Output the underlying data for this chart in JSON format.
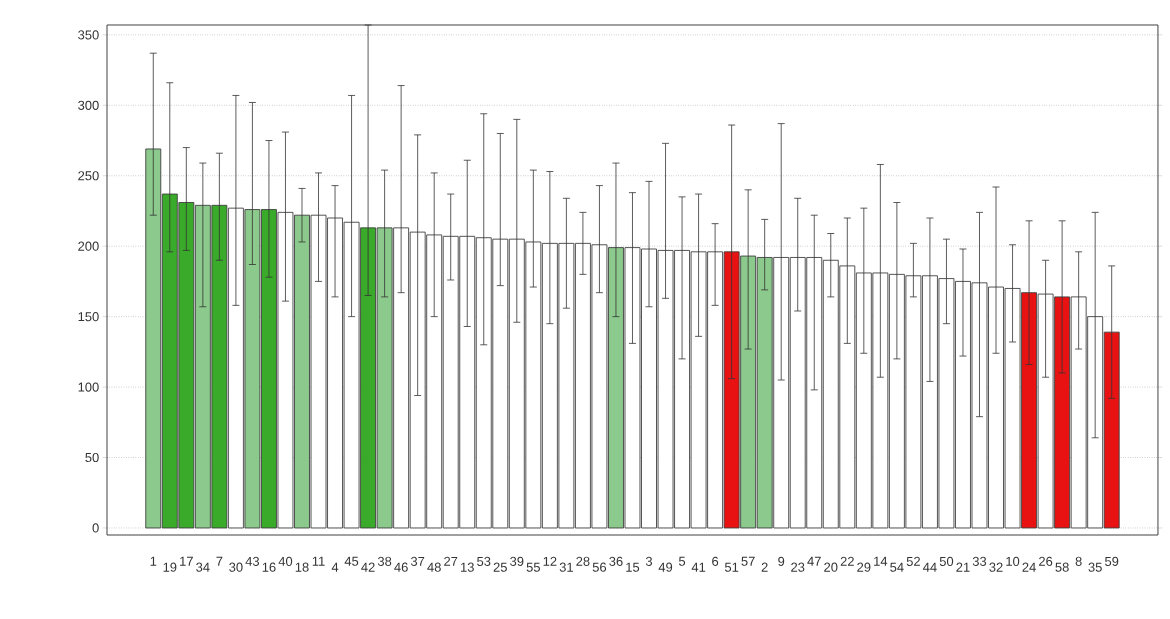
{
  "chart_data": {
    "type": "bar",
    "categories": [
      "1",
      "19",
      "17",
      "34",
      "7",
      "30",
      "43",
      "16",
      "40",
      "18",
      "11",
      "4",
      "45",
      "42",
      "38",
      "46",
      "37",
      "48",
      "27",
      "13",
      "53",
      "25",
      "39",
      "55",
      "12",
      "31",
      "28",
      "56",
      "36",
      "15",
      "3",
      "49",
      "5",
      "41",
      "6",
      "51",
      "57",
      "2",
      "9",
      "23",
      "47",
      "20",
      "22",
      "29",
      "14",
      "54",
      "52",
      "44",
      "50",
      "21",
      "33",
      "32",
      "10",
      "24",
      "26",
      "58",
      "8",
      "35",
      "59"
    ],
    "values": [
      269,
      237,
      231,
      229,
      229,
      227,
      226,
      226,
      224,
      222,
      222,
      220,
      217,
      213,
      213,
      213,
      210,
      208,
      207,
      207,
      206,
      205,
      205,
      203,
      202,
      202,
      202,
      201,
      199,
      199,
      198,
      197,
      197,
      196,
      196,
      196,
      193,
      192,
      192,
      192,
      192,
      190,
      186,
      181,
      181,
      180,
      179,
      179,
      177,
      175,
      174,
      171,
      170,
      167,
      166,
      164,
      164,
      150,
      139
    ],
    "errors": [
      [
        222,
        337
      ],
      [
        196,
        316
      ],
      [
        197,
        270
      ],
      [
        157,
        259
      ],
      [
        190,
        266
      ],
      [
        158,
        307
      ],
      [
        187,
        302
      ],
      [
        178,
        275
      ],
      [
        161,
        281
      ],
      [
        203,
        241
      ],
      [
        175,
        252
      ],
      [
        164,
        243
      ],
      [
        150,
        307
      ],
      [
        165,
        357
      ],
      [
        164,
        254
      ],
      [
        167,
        314
      ],
      [
        94,
        279
      ],
      [
        150,
        252
      ],
      [
        176,
        237
      ],
      [
        143,
        261
      ],
      [
        130,
        294
      ],
      [
        172,
        280
      ],
      [
        146,
        290
      ],
      [
        171,
        254
      ],
      [
        145,
        253
      ],
      [
        156,
        234
      ],
      [
        180,
        224
      ],
      [
        167,
        243
      ],
      [
        150,
        259
      ],
      [
        131,
        238
      ],
      [
        157,
        246
      ],
      [
        163,
        273
      ],
      [
        120,
        235
      ],
      [
        136,
        237
      ],
      [
        158,
        216
      ],
      [
        106,
        286
      ],
      [
        127,
        240
      ],
      [
        169,
        219
      ],
      [
        105,
        287
      ],
      [
        154,
        234
      ],
      [
        98,
        222
      ],
      [
        164,
        209
      ],
      [
        131,
        220
      ],
      [
        124,
        227
      ],
      [
        107,
        258
      ],
      [
        120,
        231
      ],
      [
        164,
        202
      ],
      [
        104,
        220
      ],
      [
        145,
        205
      ],
      [
        122,
        198
      ],
      [
        79,
        224
      ],
      [
        124,
        242
      ],
      [
        132,
        201
      ],
      [
        116,
        218
      ],
      [
        107,
        190
      ],
      [
        110,
        218
      ],
      [
        127,
        196
      ],
      [
        64,
        224
      ],
      [
        92,
        186
      ]
    ],
    "colors": [
      "#8cc98c",
      "#3aaa2a",
      "#3aaa2a",
      "#8cc98c",
      "#3aaa2a",
      "#ffffff",
      "#8cc98c",
      "#3aaa2a",
      "#ffffff",
      "#8cc98c",
      "#ffffff",
      "#ffffff",
      "#ffffff",
      "#3aaa2a",
      "#8cc98c",
      "#ffffff",
      "#ffffff",
      "#ffffff",
      "#ffffff",
      "#ffffff",
      "#ffffff",
      "#ffffff",
      "#ffffff",
      "#ffffff",
      "#ffffff",
      "#ffffff",
      "#ffffff",
      "#ffffff",
      "#8cc98c",
      "#ffffff",
      "#ffffff",
      "#ffffff",
      "#ffffff",
      "#ffffff",
      "#ffffff",
      "#e81212",
      "#8cc98c",
      "#8cc98c",
      "#ffffff",
      "#ffffff",
      "#ffffff",
      "#ffffff",
      "#ffffff",
      "#ffffff",
      "#ffffff",
      "#ffffff",
      "#ffffff",
      "#ffffff",
      "#ffffff",
      "#ffffff",
      "#ffffff",
      "#ffffff",
      "#ffffff",
      "#e81212",
      "#ffffff",
      "#e81212",
      "#ffffff",
      "#ffffff",
      "#e81212"
    ],
    "ylim": [
      -5,
      357
    ],
    "yticks": [
      0,
      50,
      100,
      150,
      200,
      250,
      300,
      350
    ],
    "grid": "y"
  }
}
